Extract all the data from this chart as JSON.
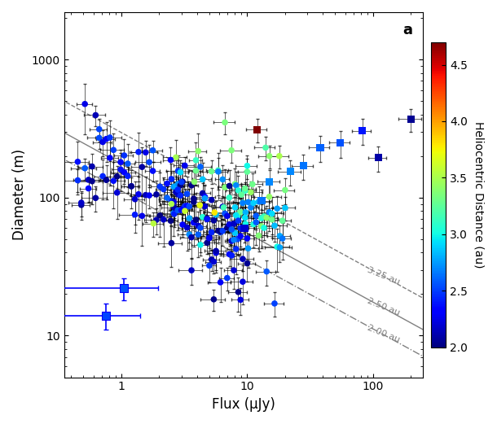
{
  "title_label": "a",
  "xlabel": "Flux (μJy)",
  "ylabel": "Diameter (m)",
  "colorbar_label": "Heliocentric Distance (au)",
  "xlim": [
    0.35,
    250
  ],
  "ylim": [
    5,
    2200
  ],
  "cmap": "jet",
  "vmin": 2.0,
  "vmax": 4.7,
  "colorbar_ticks": [
    2.0,
    2.5,
    3.0,
    3.5,
    4.0,
    4.5
  ],
  "line_slope": -0.5,
  "line_2au_intercept_logD_at_logF1": 1.45,
  "line_250_intercept_logD_at_logF1": 1.75,
  "line_325_intercept_logD_at_logF1": 2.08,
  "special_blue_squares": [
    {
      "flux": 1.05,
      "diam": 22,
      "dist": 2.55,
      "xerr_lo": 0.9,
      "xerr_hi": 0.9,
      "yerr_lo": 4,
      "yerr_hi": 4
    },
    {
      "flux": 0.75,
      "diam": 14,
      "dist": 2.52,
      "xerr_lo": 0.65,
      "xerr_hi": 0.65,
      "yerr_lo": 3,
      "yerr_hi": 3
    }
  ]
}
